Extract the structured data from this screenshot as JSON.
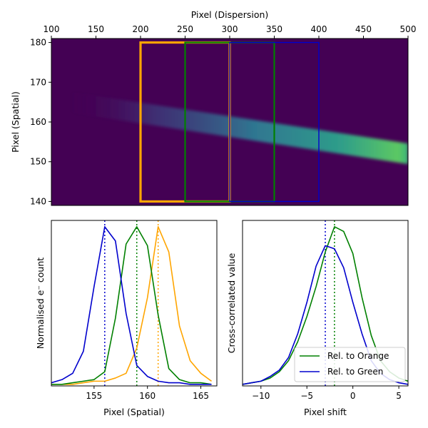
{
  "colors": {
    "orange": "#ffa500",
    "green": "#008000",
    "blue": "#0000cd",
    "axis": "#000000"
  },
  "chart_data": [
    {
      "type": "heatmap",
      "xlabel": "Pixel (Dispersion)",
      "ylabel": "Pixel (Spatial)",
      "xlim": [
        100,
        500
      ],
      "ylim": [
        139,
        181
      ],
      "xticks": [
        "100",
        "150",
        "200",
        "250",
        "300",
        "350",
        "400",
        "450",
        "500"
      ],
      "yticks": [
        "140",
        "150",
        "160",
        "170",
        "180"
      ],
      "colormap": "viridis",
      "trace": {
        "x_start": 120,
        "x_end": 500,
        "y_start": 165,
        "y_end": 152,
        "peak_x": 490
      },
      "boxes": [
        {
          "color": "orange",
          "x": [
            200,
            300
          ],
          "y": [
            140,
            180
          ]
        },
        {
          "color": "green",
          "x": [
            250,
            350
          ],
          "y": [
            140,
            180
          ]
        },
        {
          "color": "blue",
          "x": [
            300,
            400
          ],
          "y": [
            140,
            180
          ]
        }
      ]
    },
    {
      "type": "line",
      "xlabel": "Pixel (Spatial)",
      "ylabel": "Normalised e⁻ count",
      "xlim": [
        151,
        166.5
      ],
      "ylim": [
        -0.01,
        1.04
      ],
      "xticks": [
        "155",
        "160",
        "165"
      ],
      "series": [
        {
          "color": "orange",
          "x": [
            151,
            152,
            153,
            154,
            155,
            156,
            157,
            158,
            159,
            160,
            161,
            162,
            163,
            164,
            165,
            166
          ],
          "y": [
            0.0,
            0.0,
            0.0,
            0.01,
            0.02,
            0.02,
            0.04,
            0.07,
            0.23,
            0.55,
            1.0,
            0.84,
            0.37,
            0.15,
            0.07,
            0.02
          ],
          "peak": 161
        },
        {
          "color": "green",
          "x": [
            151,
            152,
            153,
            154,
            155,
            156,
            157,
            158,
            159,
            160,
            161,
            162,
            163,
            164,
            165,
            166
          ],
          "y": [
            0.0,
            0.0,
            0.01,
            0.02,
            0.03,
            0.08,
            0.42,
            0.89,
            1.0,
            0.88,
            0.44,
            0.1,
            0.03,
            0.01,
            0.01,
            0.0
          ],
          "peak": 159
        },
        {
          "color": "blue",
          "x": [
            151,
            152,
            153,
            154,
            155,
            156,
            157,
            158,
            159,
            160,
            161,
            162,
            163,
            164,
            165,
            166
          ],
          "y": [
            0.01,
            0.03,
            0.07,
            0.21,
            0.62,
            1.0,
            0.91,
            0.45,
            0.12,
            0.05,
            0.02,
            0.01,
            0.01,
            0.0,
            0.0,
            0.0
          ],
          "peak": 156
        }
      ]
    },
    {
      "type": "line",
      "xlabel": "Pixel shift",
      "ylabel": "Cross-correlated value",
      "xlim": [
        -12,
        6
      ],
      "ylim": [
        -0.01,
        1.04
      ],
      "xticks": [
        "−10",
        "−5",
        "0",
        "5"
      ],
      "legend": {
        "position": "lower-right",
        "entries": [
          "Rel. to Orange",
          "Rel. to Green"
        ]
      },
      "series": [
        {
          "name": "Rel. to Orange",
          "color": "green",
          "x": [
            -12,
            -11,
            -10,
            -9,
            -8,
            -7,
            -6,
            -5,
            -4,
            -3,
            -2,
            -1,
            0,
            1,
            2,
            3,
            4,
            5,
            6
          ],
          "y": [
            0.0,
            0.01,
            0.02,
            0.04,
            0.08,
            0.15,
            0.27,
            0.43,
            0.62,
            0.84,
            1.0,
            0.97,
            0.83,
            0.55,
            0.31,
            0.15,
            0.08,
            0.04,
            0.02
          ],
          "peak": -2
        },
        {
          "name": "Rel. to Green",
          "color": "blue",
          "x": [
            -12,
            -11,
            -10,
            -9,
            -8,
            -7,
            -6,
            -5,
            -4,
            -3,
            -2,
            -1,
            0,
            1,
            2,
            3,
            4,
            5,
            6
          ],
          "y": [
            0.0,
            0.01,
            0.02,
            0.05,
            0.09,
            0.17,
            0.32,
            0.52,
            0.75,
            0.88,
            0.86,
            0.74,
            0.52,
            0.32,
            0.15,
            0.07,
            0.03,
            0.01,
            0.0
          ],
          "peak": -3
        }
      ]
    }
  ]
}
